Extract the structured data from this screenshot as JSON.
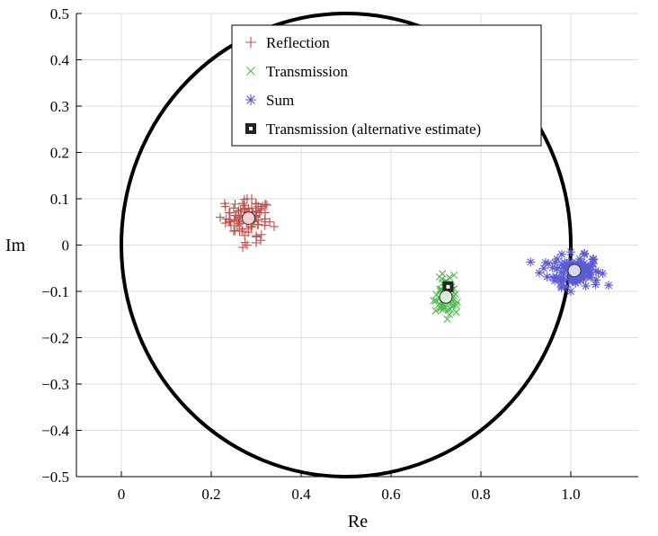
{
  "chart_data": {
    "type": "scatter",
    "xlabel": "Re",
    "ylabel": "Im",
    "xlim": [
      -0.1,
      1.15
    ],
    "ylim": [
      -0.5,
      0.5
    ],
    "x_ticks": [
      0,
      0.2,
      0.4,
      0.6,
      0.8,
      1.0
    ],
    "x_tick_labels": [
      "0",
      "0.2",
      "0.4",
      "0.6",
      "0.8",
      "1.0"
    ],
    "y_ticks": [
      0.5,
      0.4,
      0.3,
      0.2,
      0.1,
      0,
      -0.1,
      -0.2,
      -0.3,
      -0.4,
      -0.5
    ],
    "y_tick_labels": [
      "0.5",
      "0.4",
      "0.3",
      "0.2",
      "0.1",
      "0",
      "−0.1",
      "−0.2",
      "−0.3",
      "−0.4",
      "−0.5"
    ],
    "grid": true,
    "legend_position": "top-center",
    "circle": {
      "center": [
        0.5,
        0
      ],
      "radius": 0.5,
      "color": "#000000"
    },
    "series": [
      {
        "name": "Reflection",
        "marker": "plus",
        "color": "#c0504d",
        "mean": [
          0.283,
          0.058
        ],
        "spread": [
          0.025,
          0.02
        ],
        "count": 90,
        "points": [
          [
            0.23,
            0.09
          ],
          [
            0.24,
            0.07
          ],
          [
            0.25,
            0.08
          ],
          [
            0.26,
            0.06
          ],
          [
            0.27,
            0.09
          ],
          [
            0.28,
            0.1
          ],
          [
            0.29,
            0.1
          ],
          [
            0.3,
            0.09
          ],
          [
            0.31,
            0.08
          ],
          [
            0.32,
            0.07
          ],
          [
            0.33,
            0.05
          ],
          [
            0.34,
            0.04
          ],
          [
            0.25,
            0.03
          ],
          [
            0.27,
            0.03
          ],
          [
            0.29,
            0.04
          ],
          [
            0.3,
            0.02
          ],
          [
            0.31,
            0.01
          ],
          [
            0.28,
            0.0
          ],
          [
            0.27,
            -0.005
          ],
          [
            0.3,
            0.005
          ],
          [
            0.26,
            0.05
          ],
          [
            0.28,
            0.07
          ],
          [
            0.3,
            0.06
          ],
          [
            0.32,
            0.05
          ],
          [
            0.29,
            0.08
          ],
          [
            0.24,
            0.05
          ],
          [
            0.22,
            0.06
          ]
        ]
      },
      {
        "name": "Transmission",
        "marker": "cross",
        "color": "#4cb84c",
        "mean": [
          0.722,
          -0.112
        ],
        "spread": [
          0.012,
          0.02
        ],
        "count": 60,
        "points": [
          [
            0.7,
            -0.12
          ],
          [
            0.71,
            -0.1
          ],
          [
            0.72,
            -0.08
          ],
          [
            0.73,
            -0.07
          ],
          [
            0.74,
            -0.065
          ],
          [
            0.735,
            -0.09
          ],
          [
            0.74,
            -0.11
          ],
          [
            0.745,
            -0.13
          ],
          [
            0.745,
            -0.145
          ],
          [
            0.73,
            -0.15
          ],
          [
            0.725,
            -0.16
          ],
          [
            0.715,
            -0.14
          ],
          [
            0.705,
            -0.13
          ],
          [
            0.695,
            -0.12
          ],
          [
            0.72,
            -0.12
          ],
          [
            0.71,
            -0.135
          ]
        ]
      },
      {
        "name": "Sum",
        "marker": "asterisk",
        "color": "#5b5bd6",
        "mean": [
          1.008,
          -0.055
        ],
        "spread": [
          0.028,
          0.016
        ],
        "count": 110,
        "points": [
          [
            0.93,
            -0.06
          ],
          [
            0.94,
            -0.05
          ],
          [
            0.95,
            -0.04
          ],
          [
            0.96,
            -0.07
          ],
          [
            0.97,
            -0.03
          ],
          [
            0.98,
            -0.02
          ],
          [
            0.99,
            -0.04
          ],
          [
            1.0,
            -0.015
          ],
          [
            1.01,
            -0.08
          ],
          [
            1.02,
            -0.03
          ],
          [
            1.03,
            -0.05
          ],
          [
            1.04,
            -0.06
          ],
          [
            1.05,
            -0.04
          ],
          [
            1.055,
            -0.085
          ],
          [
            1.05,
            -0.03
          ],
          [
            1.0,
            -0.1
          ],
          [
            0.99,
            -0.09
          ],
          [
            0.98,
            -0.08
          ],
          [
            1.03,
            -0.02
          ],
          [
            1.045,
            -0.07
          ]
        ]
      },
      {
        "name": "Transmission (alternative estimate)",
        "marker": "square",
        "color": "#222222",
        "points": [
          [
            0.727,
            -0.09
          ]
        ]
      }
    ]
  }
}
